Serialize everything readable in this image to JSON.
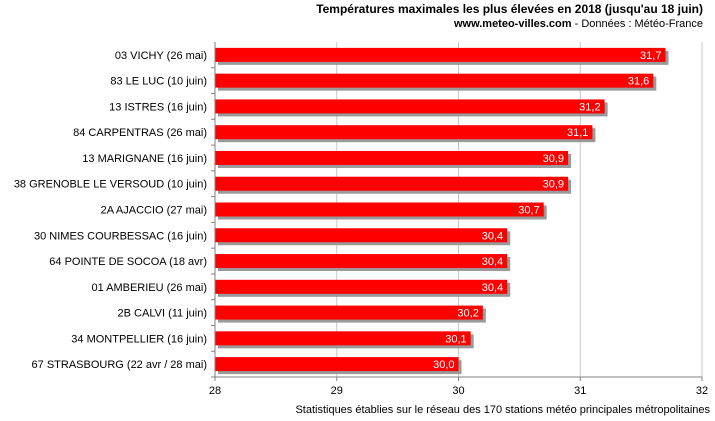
{
  "header": {
    "title": "Températures maximales les plus élevées en 2018 (jusqu'au 18 juin)",
    "site": "www.meteo-villes.com",
    "source": " - Données : Météo-France"
  },
  "footnote": "Statistiques établies sur le réseau des 170 stations météo principales métropolitaines",
  "colors": {
    "bar": "#ff0000",
    "shadow": "#9a9a9a",
    "grid": "#c8c8c8",
    "axis": "#808080"
  },
  "chart_data": {
    "type": "bar",
    "orientation": "horizontal",
    "title": "Températures maximales les plus élevées en 2018 (jusqu'au 18 juin)",
    "categories": [
      "03 VICHY (26 mai)",
      "83 LE LUC (10 juin)",
      "13 ISTRES (16 juin)",
      "84 CARPENTRAS (26 mai)",
      "13 MARIGNANE (16 juin)",
      "38 GRENOBLE LE VERSOUD (10 juin)",
      "2A AJACCIO (27 mai)",
      "30 NIMES COURBESSAC (16 juin)",
      "64 POINTE DE SOCOA (18 avr)",
      "01 AMBERIEU (26 mai)",
      "2B CALVI (11 juin)",
      "34 MONTPELLIER (16 juin)",
      "67 STRASBOURG (22 avr / 28 mai)"
    ],
    "values": [
      31.7,
      31.6,
      31.2,
      31.1,
      30.9,
      30.9,
      30.7,
      30.4,
      30.4,
      30.4,
      30.2,
      30.1,
      30.0
    ],
    "value_labels": [
      "31,7",
      "31,6",
      "31,2",
      "31,1",
      "30,9",
      "30,9",
      "30,7",
      "30,4",
      "30,4",
      "30,4",
      "30,2",
      "30,1",
      "30,0"
    ],
    "xlim": [
      28,
      32
    ],
    "xticks": [
      28,
      29,
      30,
      31,
      32
    ],
    "xtick_labels": [
      "28",
      "29",
      "30",
      "31",
      "32"
    ],
    "xlabel": "",
    "ylabel": "",
    "grid": true,
    "legend": "none"
  }
}
